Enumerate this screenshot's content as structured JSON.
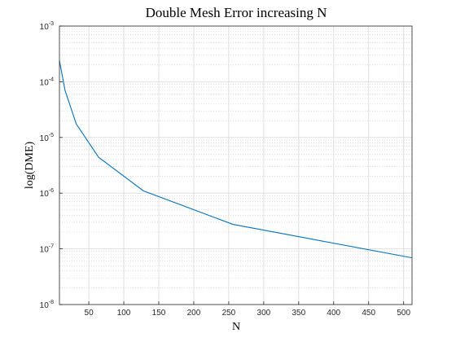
{
  "chart_data": {
    "type": "line",
    "title": "Double Mesh Error increasing N",
    "xlabel": "N",
    "ylabel": "log(DME)",
    "xlim": [
      8,
      512
    ],
    "ylim": [
      1e-08,
      0.001
    ],
    "yscale": "log",
    "grid": true,
    "minor_grid": true,
    "x_ticks": [
      50,
      100,
      150,
      200,
      250,
      300,
      350,
      400,
      450,
      500
    ],
    "y_ticks": [
      {
        "value": 1e-08,
        "base": "10",
        "exp": "-8"
      },
      {
        "value": 1e-07,
        "base": "10",
        "exp": "-7"
      },
      {
        "value": 1e-06,
        "base": "10",
        "exp": "-6"
      },
      {
        "value": 1e-05,
        "base": "10",
        "exp": "-5"
      },
      {
        "value": 0.0001,
        "base": "10",
        "exp": "-4"
      },
      {
        "value": 0.001,
        "base": "10",
        "exp": "-3"
      }
    ],
    "series": [
      {
        "color": "#0072BD",
        "x": [
          8,
          16,
          32,
          64,
          128,
          256,
          512
        ],
        "y": [
          0.00024,
          7e-05,
          1.75e-05,
          4.4e-06,
          1.1e-06,
          2.75e-07,
          6.9e-08
        ]
      }
    ]
  }
}
